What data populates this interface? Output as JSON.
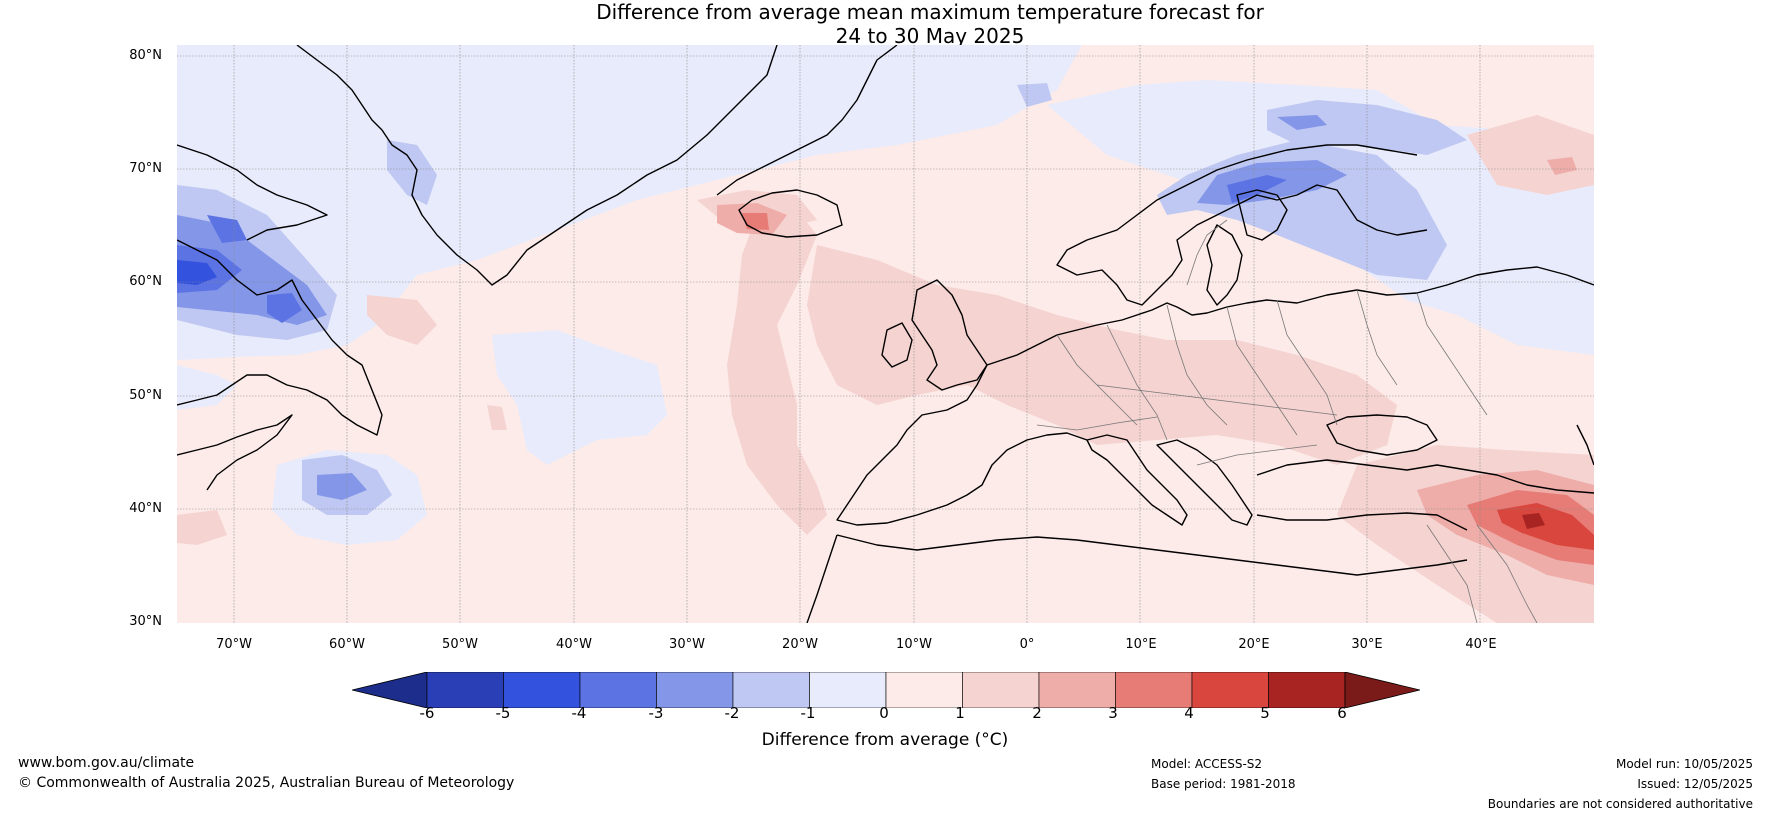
{
  "title": {
    "line1": "Difference from average mean maximum temperature forecast for",
    "line2": "24 to 30 May 2025"
  },
  "map": {
    "lat_labels": [
      "80°N",
      "70°N",
      "60°N",
      "50°N",
      "40°N",
      "30°N"
    ],
    "lon_labels": [
      "70°W",
      "60°W",
      "50°W",
      "40°W",
      "30°W",
      "20°W",
      "10°W",
      "0°",
      "10°E",
      "20°E",
      "30°E",
      "40°E"
    ],
    "lat_range": [
      30,
      81
    ],
    "lon_range": [
      -75,
      50
    ]
  },
  "colorbar": {
    "ticks": [
      "-6",
      "-5",
      "-4",
      "-3",
      "-2",
      "-1",
      "0",
      "1",
      "2",
      "3",
      "4",
      "5",
      "6"
    ],
    "label": "Difference from average (°C)",
    "colors": [
      "#1c2d8c",
      "#2a3fb6",
      "#3352dd",
      "#5c73e4",
      "#8496e8",
      "#bfc8f2",
      "#e8ebfb",
      "#fcebe9",
      "#f5d3d1",
      "#eeada9",
      "#e67c75",
      "#d8463e",
      "#a82423",
      "#7a1a19"
    ]
  },
  "footer": {
    "website": "www.bom.gov.au/climate",
    "copyright": "© Commonwealth of Australia 2025, Australian Bureau of Meteorology",
    "model": "Model: ACCESS-S2",
    "base_period": "Base period: 1981-2018",
    "model_run": "Model run: 10/05/2025",
    "issued": "Issued: 12/05/2025",
    "disclaimer": "Boundaries are not considered authoritative"
  }
}
